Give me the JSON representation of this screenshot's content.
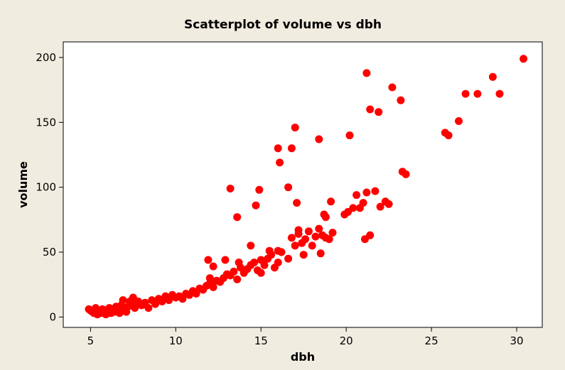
{
  "chart_data": {
    "type": "scatter",
    "title": "Scatterplot of volume vs dbh",
    "xlabel": "dbh",
    "ylabel": "volume",
    "xlim": [
      3.4,
      31.5
    ],
    "ylim": [
      -8,
      212
    ],
    "xticks": [
      "5",
      "10",
      "15",
      "20",
      "25",
      "30"
    ],
    "yticks": [
      "0",
      "50",
      "100",
      "150",
      "200"
    ],
    "grid": false,
    "colors": {
      "point": "#ff0000",
      "background": "#f0ece0",
      "plot": "#ffffff",
      "frame": "#000000"
    },
    "points": [
      [
        4.9,
        6
      ],
      [
        5.0,
        5
      ],
      [
        5.1,
        4
      ],
      [
        5.2,
        3
      ],
      [
        5.3,
        7
      ],
      [
        5.4,
        2
      ],
      [
        5.5,
        5
      ],
      [
        5.6,
        3
      ],
      [
        5.7,
        6
      ],
      [
        5.8,
        4
      ],
      [
        5.9,
        2
      ],
      [
        6.0,
        5
      ],
      [
        6.1,
        7
      ],
      [
        6.2,
        3
      ],
      [
        6.3,
        6
      ],
      [
        6.4,
        4
      ],
      [
        6.5,
        8
      ],
      [
        6.6,
        5
      ],
      [
        6.7,
        3
      ],
      [
        6.8,
        9
      ],
      [
        6.9,
        13
      ],
      [
        7.0,
        6
      ],
      [
        7.1,
        4
      ],
      [
        7.2,
        8
      ],
      [
        7.3,
        12
      ],
      [
        7.4,
        10
      ],
      [
        7.5,
        15
      ],
      [
        7.6,
        7
      ],
      [
        7.8,
        12
      ],
      [
        8.0,
        9
      ],
      [
        8.2,
        11
      ],
      [
        8.4,
        7
      ],
      [
        8.6,
        13
      ],
      [
        8.8,
        10
      ],
      [
        9.0,
        14
      ],
      [
        9.2,
        12
      ],
      [
        9.4,
        16
      ],
      [
        9.6,
        13
      ],
      [
        9.8,
        17
      ],
      [
        10.0,
        15
      ],
      [
        10.2,
        16
      ],
      [
        10.4,
        14
      ],
      [
        10.6,
        18
      ],
      [
        10.8,
        17
      ],
      [
        11.0,
        20
      ],
      [
        11.2,
        18
      ],
      [
        11.4,
        22
      ],
      [
        11.6,
        21
      ],
      [
        11.8,
        24
      ],
      [
        12.0,
        26
      ],
      [
        12.0,
        30
      ],
      [
        12.2,
        23
      ],
      [
        12.4,
        28
      ],
      [
        12.6,
        27
      ],
      [
        12.8,
        30
      ],
      [
        13.0,
        33
      ],
      [
        13.2,
        32
      ],
      [
        13.4,
        35
      ],
      [
        13.6,
        29
      ],
      [
        13.8,
        38
      ],
      [
        14.0,
        34
      ],
      [
        14.2,
        37
      ],
      [
        14.4,
        40
      ],
      [
        14.6,
        42
      ],
      [
        14.8,
        36
      ],
      [
        15.0,
        44
      ],
      [
        15.2,
        40
      ],
      [
        15.4,
        45
      ],
      [
        15.6,
        48
      ],
      [
        15.8,
        38
      ],
      [
        16.0,
        42
      ],
      [
        16.2,
        50
      ],
      [
        11.9,
        44
      ],
      [
        12.2,
        39
      ],
      [
        12.9,
        44
      ],
      [
        13.7,
        42
      ],
      [
        14.4,
        55
      ],
      [
        15.0,
        34
      ],
      [
        15.5,
        51
      ],
      [
        16.0,
        51
      ],
      [
        16.6,
        45
      ],
      [
        16.8,
        61
      ],
      [
        17.0,
        55
      ],
      [
        17.2,
        64
      ],
      [
        17.4,
        57
      ],
      [
        17.6,
        60
      ],
      [
        17.8,
        66
      ],
      [
        18.0,
        55
      ],
      [
        18.2,
        62
      ],
      [
        18.4,
        68
      ],
      [
        18.6,
        63
      ],
      [
        18.8,
        61
      ],
      [
        19.0,
        60
      ],
      [
        19.2,
        65
      ],
      [
        17.2,
        67
      ],
      [
        17.5,
        48
      ],
      [
        18.5,
        49
      ],
      [
        18.7,
        79
      ],
      [
        18.8,
        77
      ],
      [
        19.1,
        89
      ],
      [
        19.9,
        79
      ],
      [
        20.1,
        81
      ],
      [
        20.4,
        84
      ],
      [
        20.6,
        94
      ],
      [
        20.8,
        84
      ],
      [
        21.0,
        88
      ],
      [
        21.2,
        96
      ],
      [
        21.4,
        63
      ],
      [
        21.1,
        60
      ],
      [
        21.7,
        97
      ],
      [
        22.0,
        85
      ],
      [
        22.3,
        89
      ],
      [
        22.5,
        87
      ],
      [
        23.3,
        112
      ],
      [
        23.5,
        110
      ],
      [
        13.2,
        99
      ],
      [
        13.6,
        77
      ],
      [
        14.7,
        86
      ],
      [
        14.9,
        98
      ],
      [
        16.0,
        130
      ],
      [
        16.1,
        119
      ],
      [
        16.6,
        100
      ],
      [
        16.8,
        130
      ],
      [
        17.0,
        146
      ],
      [
        17.1,
        88
      ],
      [
        18.4,
        137
      ],
      [
        20.2,
        140
      ],
      [
        21.2,
        188
      ],
      [
        21.4,
        160
      ],
      [
        21.9,
        158
      ],
      [
        22.7,
        177
      ],
      [
        23.2,
        167
      ],
      [
        25.8,
        142
      ],
      [
        26.0,
        140
      ],
      [
        26.6,
        151
      ],
      [
        27.0,
        172
      ],
      [
        27.7,
        172
      ],
      [
        28.6,
        185
      ],
      [
        29.0,
        172
      ],
      [
        30.4,
        199
      ]
    ]
  }
}
